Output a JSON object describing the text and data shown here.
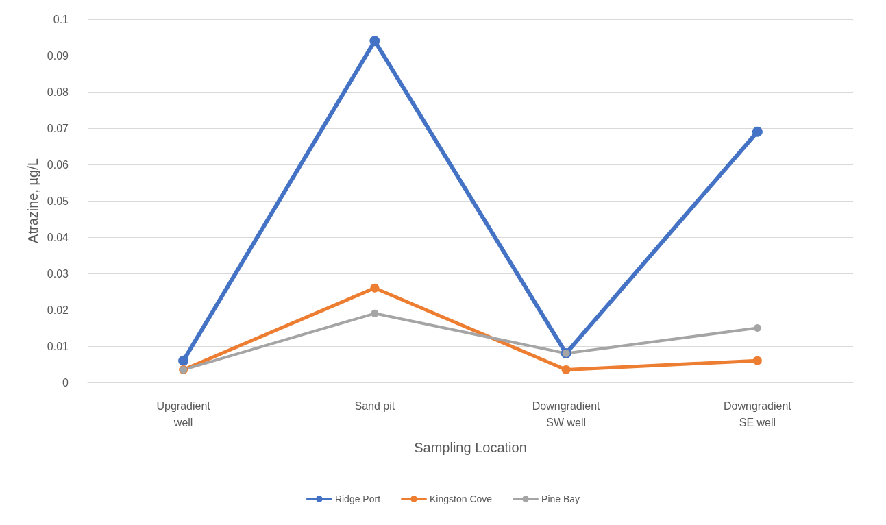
{
  "chart_data": {
    "type": "line",
    "xlabel": "Sampling Location",
    "ylabel": "Atrazine, µg/L",
    "categories": [
      "Upgradient\nwell",
      "Sand pit",
      "Downgradient\nSW well",
      "Downgradient\nSE well"
    ],
    "series": [
      {
        "name": "Ridge Port",
        "color": "#4472c4",
        "values": [
          0.006,
          0.094,
          0.008,
          0.069
        ]
      },
      {
        "name": "Kingston Cove",
        "color": "#ed7d31",
        "values": [
          0.0035,
          0.026,
          0.0035,
          0.006
        ]
      },
      {
        "name": "Pine Bay",
        "color": "#a5a5a5",
        "values": [
          0.0035,
          0.019,
          0.008,
          0.015
        ]
      }
    ],
    "ylim": [
      0,
      0.1
    ],
    "yticks": [
      0,
      0.01,
      0.02,
      0.03,
      0.04,
      0.05,
      0.06,
      0.07,
      0.08,
      0.09,
      0.1
    ],
    "grid": "y",
    "legend": "bottom",
    "marker": "circle",
    "line_style": "solid"
  }
}
